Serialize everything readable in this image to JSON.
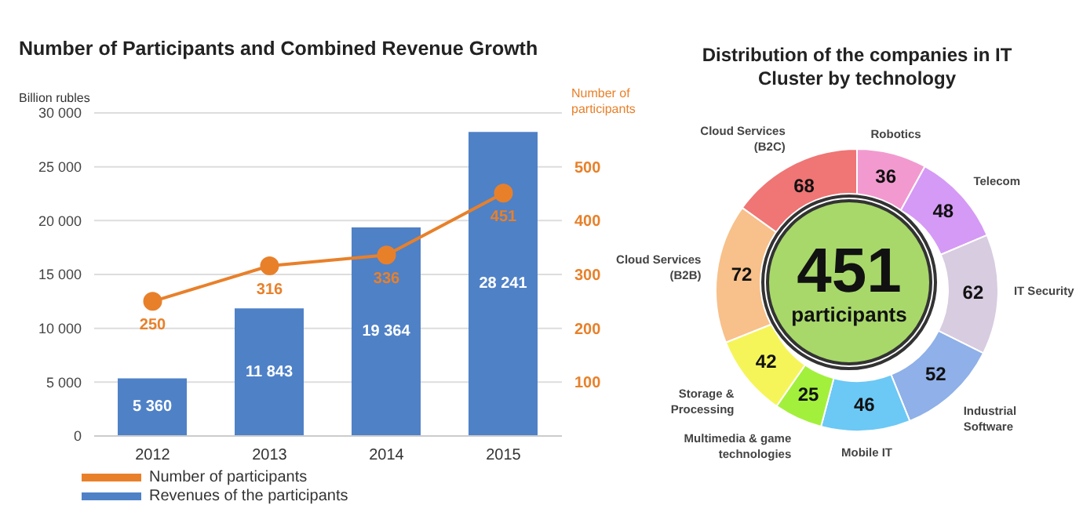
{
  "chart_data": [
    {
      "type": "bar",
      "title": "Number of Participants and Combined Revenue Growth",
      "ylabel": "Billion rubles",
      "y2label": "Number of participants",
      "categories": [
        "2012",
        "2013",
        "2014",
        "2015"
      ],
      "series": [
        {
          "name": "Number of participants",
          "type": "line",
          "axis": "y2",
          "color": "#e8802a",
          "values": [
            250,
            316,
            336,
            451
          ],
          "value_labels": [
            "250",
            "316",
            "336",
            "451"
          ]
        },
        {
          "name": "Revenues of the participants",
          "type": "bar",
          "color": "#4f81c7",
          "values": [
            5360,
            11843,
            19364,
            28241
          ],
          "value_labels": [
            "5 360",
            "11 843",
            "19 364",
            "28 241"
          ]
        }
      ],
      "ylim": [
        0,
        30000
      ],
      "yticks": [
        {
          "value": 0,
          "label": "0"
        },
        {
          "value": 5000,
          "label": "5 000"
        },
        {
          "value": 10000,
          "label": "10 000"
        },
        {
          "value": 15000,
          "label": "15 000"
        },
        {
          "value": 20000,
          "label": "20 000"
        },
        {
          "value": 25000,
          "label": "25 000"
        },
        {
          "value": 30000,
          "label": "30 000"
        }
      ],
      "y2lim": [
        0,
        600
      ],
      "y2ticks": [
        100,
        200,
        300,
        400,
        500
      ],
      "grid": "y",
      "legend": "bottom left",
      "marker": "circle"
    },
    {
      "type": "donut",
      "title": "Distribution of the companies in IT Cluster by technology",
      "categories": [
        "Robotics",
        "Telecom",
        "IT Security",
        "Industrial Software",
        "Mobile IT",
        "Multimedia & game technologies",
        "Storage & Processing",
        "Cloud Services (B2B)",
        "Cloud Services (B2C)"
      ],
      "values": [
        36,
        48,
        62,
        52,
        46,
        25,
        42,
        72,
        68
      ],
      "colors": [
        "#f29ad0",
        "#d59af5",
        "#d8cce0",
        "#8fb0e8",
        "#6cc8f5",
        "#a2f03c",
        "#f5f55a",
        "#f8c08a",
        "#f07575"
      ],
      "data_labels": true,
      "legend": false,
      "annotations": [
        "451",
        "participants"
      ]
    }
  ]
}
